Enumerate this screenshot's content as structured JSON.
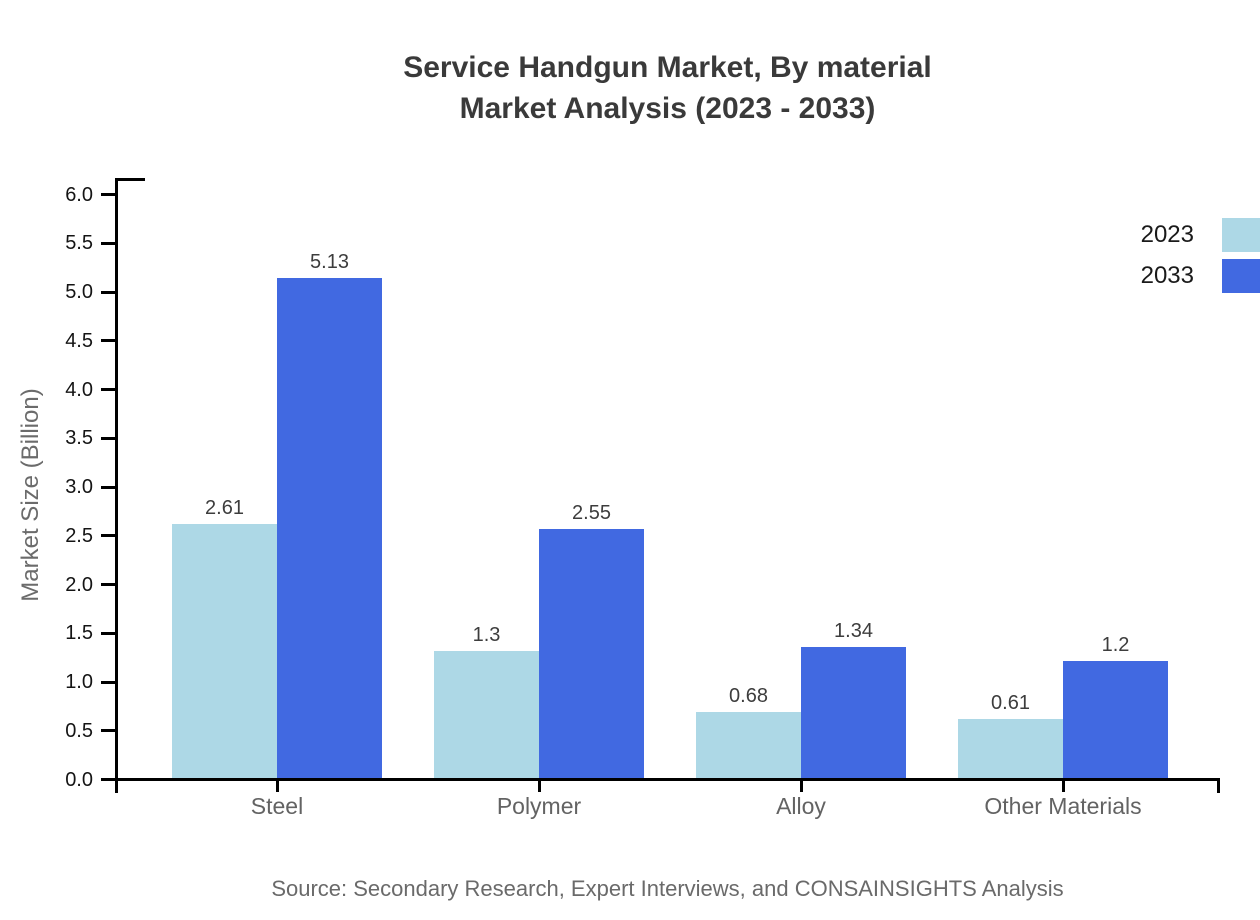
{
  "header": {
    "title_line1": "Service Handgun Market, By material",
    "title_line2": "Market Analysis (2023 - 2033)"
  },
  "legend": {
    "items": [
      {
        "label": "2023",
        "color": "#ADD8E6"
      },
      {
        "label": "2033",
        "color": "#4169E1"
      }
    ]
  },
  "footer": {
    "source": "Source: Secondary Research, Expert Interviews, and CONSAINSIGHTS Analysis"
  },
  "chart_data": {
    "type": "bar",
    "title": "Service Handgun Market, By material Market Analysis (2023 - 2033)",
    "categories": [
      "Steel",
      "Polymer",
      "Alloy",
      "Other Materials"
    ],
    "series": [
      {
        "name": "2023",
        "color": "#ADD8E6",
        "values": [
          2.61,
          1.3,
          0.68,
          0.61
        ]
      },
      {
        "name": "2033",
        "color": "#4169E1",
        "values": [
          5.13,
          2.55,
          1.34,
          1.2
        ]
      }
    ],
    "xlabel": "",
    "ylabel": "Market Size (Billion)",
    "ylim": [
      0,
      6
    ],
    "ytick_step": 0.5,
    "grid": false,
    "legend_position": "top-right",
    "bar_value_labels": true,
    "axis_color": "#000000",
    "title_color": "#3a3a3a",
    "category_label_color": "#636363"
  }
}
